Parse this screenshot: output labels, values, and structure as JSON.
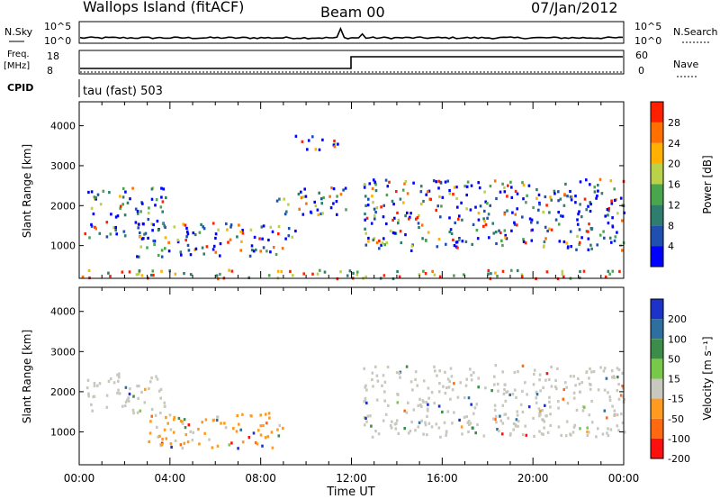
{
  "header": {
    "station": "Wallops Island (fitACF)",
    "beam": "Beam 00",
    "date": "07/Jan/2012"
  },
  "noise_panel": {
    "left_label": "N.Sky",
    "right_label": "N.Search",
    "ticks_left": [
      "10^5",
      "10^0"
    ],
    "ticks_right": [
      "10^5",
      "10^0"
    ]
  },
  "freq_panel": {
    "left_label_1": "Freq.",
    "left_label_2": "[MHz]",
    "right_label": "Nave",
    "ticks_left": [
      "18",
      "8"
    ],
    "ticks_right": [
      "60",
      "0"
    ]
  },
  "cpid": {
    "label": "CPID",
    "value": "tau (fast) 503"
  },
  "chart_data": [
    {
      "type": "heatmap",
      "name": "power",
      "ylabel": "Slant Range [km]",
      "ylim": [
        180,
        4600
      ],
      "yticks": [
        "1000",
        "2000",
        "3000",
        "4000"
      ],
      "xlim": [
        0,
        24
      ],
      "colorbar_label": "Power [dB]",
      "colorbar_ticks": [
        "4",
        "8",
        "12",
        "16",
        "20",
        "24",
        "28"
      ],
      "colors": [
        "#0000ff",
        "#1f4fb0",
        "#2e7d6e",
        "#49a64d",
        "#b9d24a",
        "#ffb000",
        "#ff7000",
        "#ff2000"
      ],
      "scatter_regions": [
        {
          "t0": 0.2,
          "t1": 3.8,
          "r0": 1200,
          "r1": 2500,
          "level": 0.45
        },
        {
          "t0": 2.5,
          "t1": 9.5,
          "r0": 750,
          "r1": 1600,
          "level": 0.5
        },
        {
          "t0": 8.5,
          "t1": 11.8,
          "r0": 1800,
          "r1": 2500,
          "level": 0.45
        },
        {
          "t0": 9.5,
          "t1": 11.5,
          "r0": 3400,
          "r1": 3800,
          "level": 0.5
        },
        {
          "t0": 12.5,
          "t1": 24,
          "r0": 900,
          "r1": 2700,
          "level": 0.5
        },
        {
          "t0": 0,
          "t1": 24,
          "r0": 200,
          "r1": 420,
          "level": 0.6
        }
      ]
    },
    {
      "type": "heatmap",
      "name": "velocity",
      "ylabel": "Slant Range [km]",
      "ylim": [
        180,
        4600
      ],
      "yticks": [
        "1000",
        "2000",
        "3000",
        "4000"
      ],
      "xlim": [
        0,
        24
      ],
      "xlabel": "Time UT",
      "xticks": [
        "00:00",
        "04:00",
        "08:00",
        "12:00",
        "16:00",
        "20:00",
        "00:00"
      ],
      "colorbar_label": "Velocity [m s⁻¹]",
      "colorbar_ticks": [
        "200",
        "100",
        "50",
        "15",
        "-15",
        "-50",
        "-100",
        "-200"
      ],
      "colors": [
        "#1d32c8",
        "#2f6fa0",
        "#3c8d4a",
        "#78c84a",
        "#c8c8be",
        "#ff9a20",
        "#ff6a10",
        "#ff1010"
      ],
      "scatter_regions": [
        {
          "t0": 0.3,
          "t1": 3.8,
          "r0": 1500,
          "r1": 2500,
          "level": "ground"
        },
        {
          "t0": 3.0,
          "t1": 9.0,
          "r0": 600,
          "r1": 1500,
          "level": "negative"
        },
        {
          "t0": 12.5,
          "t1": 24,
          "r0": 900,
          "r1": 2700,
          "level": "ground"
        }
      ]
    }
  ]
}
